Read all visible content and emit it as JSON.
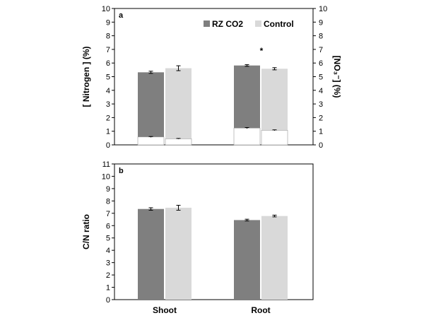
{
  "colors": {
    "rz_co2": "#7f7f7f",
    "control": "#d9d9d9",
    "inner": "#ffffff",
    "frame": "#000000"
  },
  "chart_data": [
    {
      "type": "bar",
      "panel": "a",
      "categories": [
        "Shoot",
        "Root"
      ],
      "ylabel": "[ Nitrogen ] (%)",
      "y2label": "[NO₃⁻] (%)",
      "ylim": [
        0,
        10
      ],
      "yticks": [
        "0",
        "1",
        "2",
        "3",
        "4",
        "5",
        "6",
        "7",
        "8",
        "9",
        "10"
      ],
      "y2ticks": [
        "0",
        "1",
        "2",
        "3",
        "4",
        "5",
        "6",
        "7",
        "8",
        "9",
        "10"
      ],
      "legend": {
        "placement": "top-right",
        "entries": [
          "RZ CO2",
          "Control"
        ]
      },
      "series": [
        {
          "name": "RZ CO2",
          "values": [
            5.32,
            5.82
          ],
          "errors": [
            0.08,
            0.06
          ],
          "inner_values": [
            0.58,
            1.23
          ],
          "inner_errors": [
            0.03,
            0.04
          ]
        },
        {
          "name": "Control",
          "values": [
            5.62,
            5.58
          ],
          "errors": [
            0.18,
            0.08
          ],
          "inner_values": [
            0.45,
            1.07
          ],
          "inner_errors": [
            0.02,
            0.03
          ]
        }
      ],
      "annotations": [
        {
          "text": "*",
          "category": "Root",
          "y": 7.0
        }
      ],
      "grid": false
    },
    {
      "type": "bar",
      "panel": "b",
      "categories": [
        "Shoot",
        "Root"
      ],
      "ylabel": "C/N ratio",
      "ylim": [
        0,
        11
      ],
      "yticks": [
        "0",
        "1",
        "2",
        "3",
        "4",
        "5",
        "6",
        "7",
        "8",
        "9",
        "10",
        "11"
      ],
      "series": [
        {
          "name": "RZ CO2",
          "values": [
            7.35,
            6.45
          ],
          "errors": [
            0.1,
            0.07
          ]
        },
        {
          "name": "Control",
          "values": [
            7.45,
            6.78
          ],
          "errors": [
            0.2,
            0.07
          ]
        }
      ],
      "grid": false
    }
  ]
}
